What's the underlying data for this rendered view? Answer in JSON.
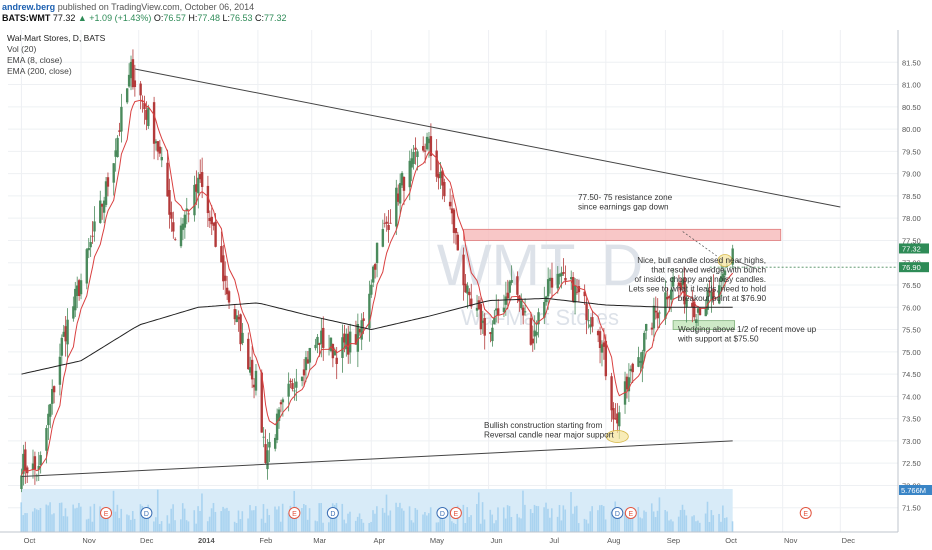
{
  "header": {
    "author": "andrew.berg",
    "published": "published on TradingView.com, October 06, 2014",
    "symbol": "BATS:WMT",
    "last": "77.32",
    "change": "▲ +1.09 (+1.43%)",
    "open_label": "O:",
    "open": "76.57",
    "high_label": "H:",
    "high": "77.48",
    "low_label": "L:",
    "low": "76.53",
    "close_label": "C:",
    "close": "77.32"
  },
  "legend": {
    "title": "Wal-Mart Stores, D, BATS",
    "vol": "Vol (20)",
    "ema8": "EMA (8, close)",
    "ema200": "EMA (200, close)"
  },
  "watermark": {
    "symbol": "WMT, D",
    "name": "Wal-Mart Stores"
  },
  "annotations": {
    "resistance": [
      "77.50- 75 resistance zone",
      "since earnings gap down"
    ],
    "bull": [
      "Nice, bull candle closed near highs,",
      "that resolved wedge with bunch",
      "of inside, choppy and noisy candles.",
      "Lets see to what it leads, need to hold",
      "breakout point at $76.90"
    ],
    "wedge": [
      "Wedging above 1/2 of recent move up",
      "with support at $75.50"
    ],
    "bullish": [
      "Bullish construction starting from",
      "Reversal candle near major support"
    ]
  },
  "price_tags": {
    "last": "77.32",
    "breakout": "76.90",
    "volume": "5.766M"
  },
  "colors": {
    "up": "#4a8a5c",
    "down": "#b33a3a",
    "ema8": "#d94040",
    "ema200": "#222222",
    "volume": "#a9d3f0",
    "resistance_fill": "#f6b9b9",
    "support_fill": "#c6e6bd",
    "highlight": "#f5e49a",
    "event_e": "#e2553f",
    "event_d": "#3c6fb4"
  },
  "events": [
    "E",
    "D",
    "E",
    "D",
    "D",
    "E",
    "D",
    "E",
    "E"
  ],
  "chart_data": {
    "type": "candlestick",
    "ylim": [
      71,
      82
    ],
    "yticks": [
      "71.50",
      "72.00",
      "72.50",
      "73.00",
      "73.50",
      "74.00",
      "74.50",
      "75.00",
      "75.50",
      "76.00",
      "76.50",
      "77.00",
      "77.50",
      "78.00",
      "78.50",
      "79.00",
      "79.50",
      "80.00",
      "80.50",
      "81.00",
      "81.50"
    ],
    "xticks": [
      "Oct",
      "Nov",
      "Dec",
      "2014",
      "Feb",
      "Mar",
      "Apr",
      "May",
      "Jun",
      "Jul",
      "Aug",
      "Sep",
      "Oct",
      "Nov",
      "Dec"
    ],
    "price_anchors": [
      [
        "2013-10-01",
        72.5
      ],
      [
        "2013-10-10",
        72.3
      ],
      [
        "2013-10-22",
        75.2
      ],
      [
        "2013-11-01",
        76.6
      ],
      [
        "2013-11-15",
        78.8
      ],
      [
        "2013-11-27",
        81.3
      ],
      [
        "2013-12-10",
        79.8
      ],
      [
        "2013-12-20",
        77.6
      ],
      [
        "2014-01-02",
        78.8
      ],
      [
        "2014-01-17",
        76.2
      ],
      [
        "2014-01-31",
        74.3
      ],
      [
        "2014-02-05",
        72.7
      ],
      [
        "2014-02-20",
        74.4
      ],
      [
        "2014-03-05",
        75.3
      ],
      [
        "2014-03-14",
        75.0
      ],
      [
        "2014-03-26",
        75.4
      ],
      [
        "2014-04-04",
        77.3
      ],
      [
        "2014-04-17",
        78.8
      ],
      [
        "2014-04-30",
        79.7
      ],
      [
        "2014-05-12",
        78.2
      ],
      [
        "2014-05-22",
        76.0
      ],
      [
        "2014-06-02",
        75.4
      ],
      [
        "2014-06-13",
        76.6
      ],
      [
        "2014-06-24",
        75.3
      ],
      [
        "2014-07-03",
        76.7
      ],
      [
        "2014-07-15",
        76.4
      ],
      [
        "2014-07-28",
        75.6
      ],
      [
        "2014-08-06",
        73.4
      ],
      [
        "2014-08-15",
        74.6
      ],
      [
        "2014-08-26",
        75.8
      ],
      [
        "2014-09-05",
        76.6
      ],
      [
        "2014-09-17",
        76.0
      ],
      [
        "2014-09-29",
        76.3
      ],
      [
        "2014-10-06",
        77.32
      ]
    ],
    "ema200_anchors": [
      [
        "2013-10-01",
        74.5
      ],
      [
        "2013-11-01",
        74.8
      ],
      [
        "2013-12-01",
        75.6
      ],
      [
        "2014-01-01",
        76.0
      ],
      [
        "2014-02-01",
        76.1
      ],
      [
        "2014-03-01",
        75.8
      ],
      [
        "2014-04-01",
        75.5
      ],
      [
        "2014-05-01",
        75.8
      ],
      [
        "2014-06-01",
        76.15
      ],
      [
        "2014-07-01",
        76.2
      ],
      [
        "2014-08-01",
        76.05
      ],
      [
        "2014-09-01",
        76.0
      ],
      [
        "2014-10-06",
        76.0
      ]
    ],
    "trendline_upper": [
      [
        "2013-11-29",
        81.35
      ],
      [
        "2014-12-01",
        78.25
      ]
    ],
    "trendline_lower": [
      [
        "2013-10-01",
        72.2
      ],
      [
        "2014-10-06",
        73.0
      ]
    ],
    "resistance_zone": {
      "x": [
        "2014-05-19",
        "2014-10-31"
      ],
      "y": [
        77.5,
        77.75
      ]
    },
    "support_zone": {
      "x": [
        "2014-09-05",
        "2014-10-07"
      ],
      "y": [
        75.5,
        75.7
      ]
    },
    "breakout_level": 76.9
  }
}
